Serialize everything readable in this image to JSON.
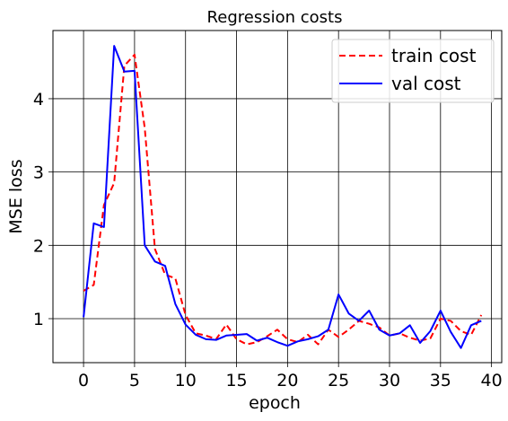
{
  "chart_data": {
    "type": "line",
    "title": "Regression costs",
    "xlabel": "epoch",
    "ylabel": "MSE loss",
    "xlim": [
      -3,
      41
    ],
    "ylim": [
      0.4,
      4.93
    ],
    "xticks": [
      0,
      5,
      10,
      15,
      20,
      25,
      30,
      35,
      40
    ],
    "yticks": [
      1,
      2,
      3,
      4
    ],
    "grid": true,
    "legend": "top-right",
    "x": [
      0,
      1,
      2,
      3,
      4,
      5,
      6,
      7,
      8,
      9,
      10,
      11,
      12,
      13,
      14,
      15,
      16,
      17,
      18,
      19,
      20,
      21,
      22,
      23,
      24,
      25,
      26,
      27,
      28,
      29,
      30,
      31,
      32,
      33,
      34,
      35,
      36,
      37,
      38,
      39
    ],
    "series": [
      {
        "name": "train cost",
        "color": "#ff0000",
        "style": "dashed",
        "values": [
          1.38,
          1.46,
          2.55,
          2.85,
          4.45,
          4.6,
          3.6,
          1.95,
          1.6,
          1.55,
          1.05,
          0.8,
          0.77,
          0.72,
          0.92,
          0.72,
          0.65,
          0.68,
          0.76,
          0.85,
          0.72,
          0.68,
          0.78,
          0.65,
          0.85,
          0.75,
          0.85,
          0.97,
          0.93,
          0.88,
          0.77,
          0.8,
          0.74,
          0.7,
          0.73,
          1.0,
          0.97,
          0.83,
          0.78,
          1.05
        ]
      },
      {
        "name": "val cost",
        "color": "#0000ff",
        "style": "solid",
        "values": [
          1.02,
          2.3,
          2.25,
          4.72,
          4.37,
          4.38,
          2.0,
          1.78,
          1.72,
          1.2,
          0.92,
          0.78,
          0.72,
          0.71,
          0.77,
          0.78,
          0.79,
          0.7,
          0.74,
          0.68,
          0.63,
          0.69,
          0.72,
          0.76,
          0.85,
          1.33,
          1.07,
          0.97,
          1.11,
          0.85,
          0.77,
          0.8,
          0.91,
          0.67,
          0.83,
          1.11,
          0.82,
          0.6,
          0.91,
          0.97
        ]
      }
    ]
  }
}
